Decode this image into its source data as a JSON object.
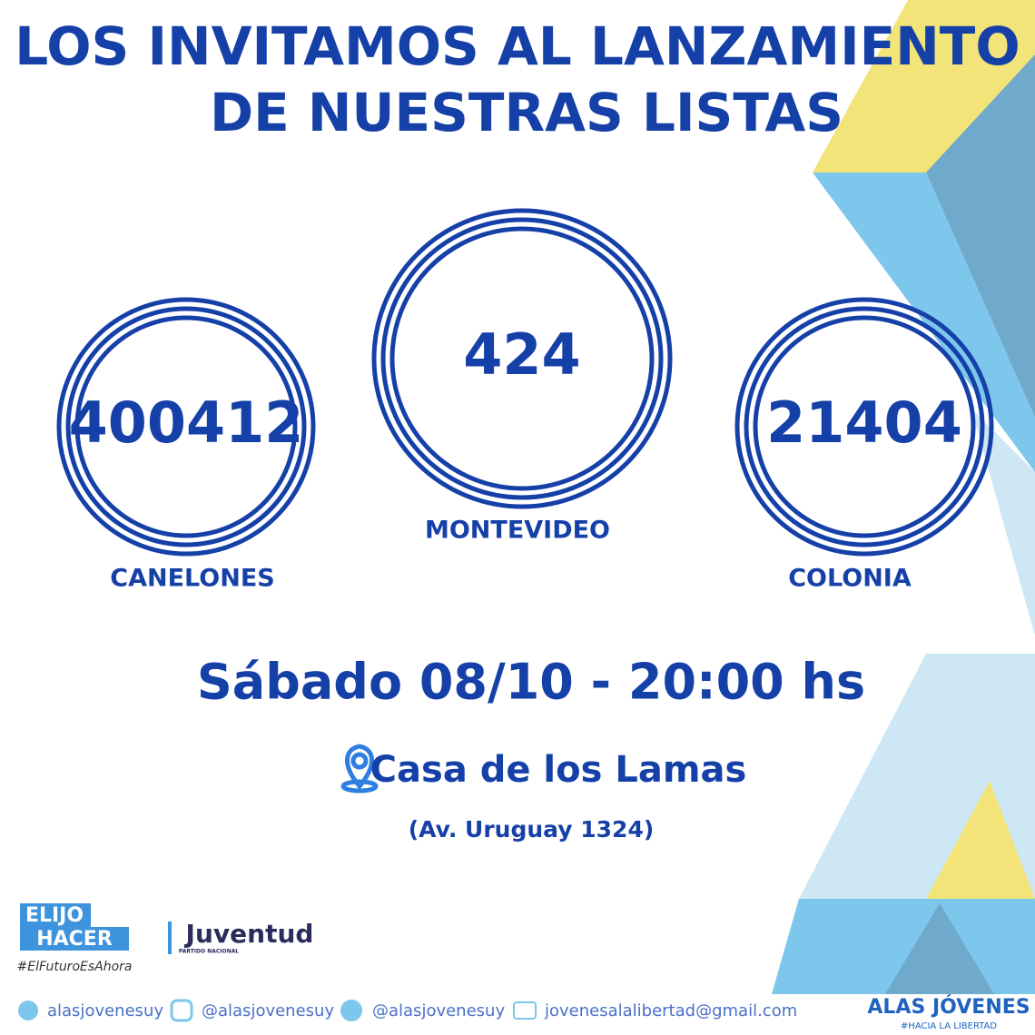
{
  "title": [
    "LOS INVITAMOS AL LANZAMIENTO",
    "DE NUESTRAS LISTAS"
  ],
  "lists": [
    {
      "number": 400412,
      "place": "CANELONES"
    },
    {
      "number": 424,
      "place": "MONTEVIDEO"
    },
    {
      "number": 21404,
      "place": "COLONIA"
    }
  ],
  "event": {
    "date": "Sábado 08/10 - 20:00 hs",
    "venue": "Casa de los Lamas",
    "address": "(Av. Uruguay 1324)"
  },
  "logos": {
    "elijo": "ELIJO",
    "hacer": "HACER",
    "hashtag": "#ElFuturoEsAhora",
    "juventud": "Juventud",
    "partido": "PARTIDO NACIONAL",
    "brand": "ALAS JÓVENES",
    "brand_tag": "#HACIA LA LIBERTAD"
  },
  "social": [
    "alasjovenesuy",
    "@alasjovenesuy",
    "@alasjovenesuy",
    "jovenesalalibertad@gmail.com"
  ]
}
